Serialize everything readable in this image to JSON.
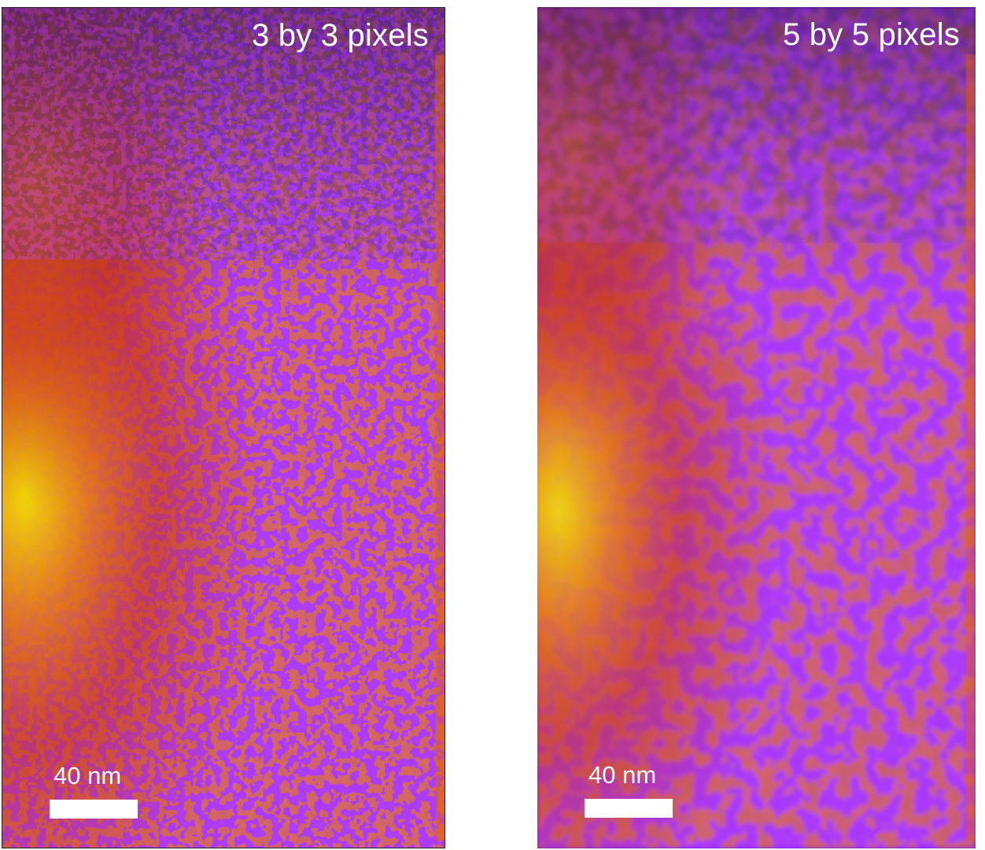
{
  "panels": [
    {
      "label": "3 by 3 pixels",
      "scale_bar_label": "40 nm"
    },
    {
      "label": "5 by 5 pixels",
      "scale_bar_label": "40 nm"
    }
  ],
  "colormap": {
    "dark": "#2a0a3a",
    "violet": "#7a10f6",
    "red": "#c83010",
    "orange": "#e06010",
    "yellow": "#f4e000"
  }
}
